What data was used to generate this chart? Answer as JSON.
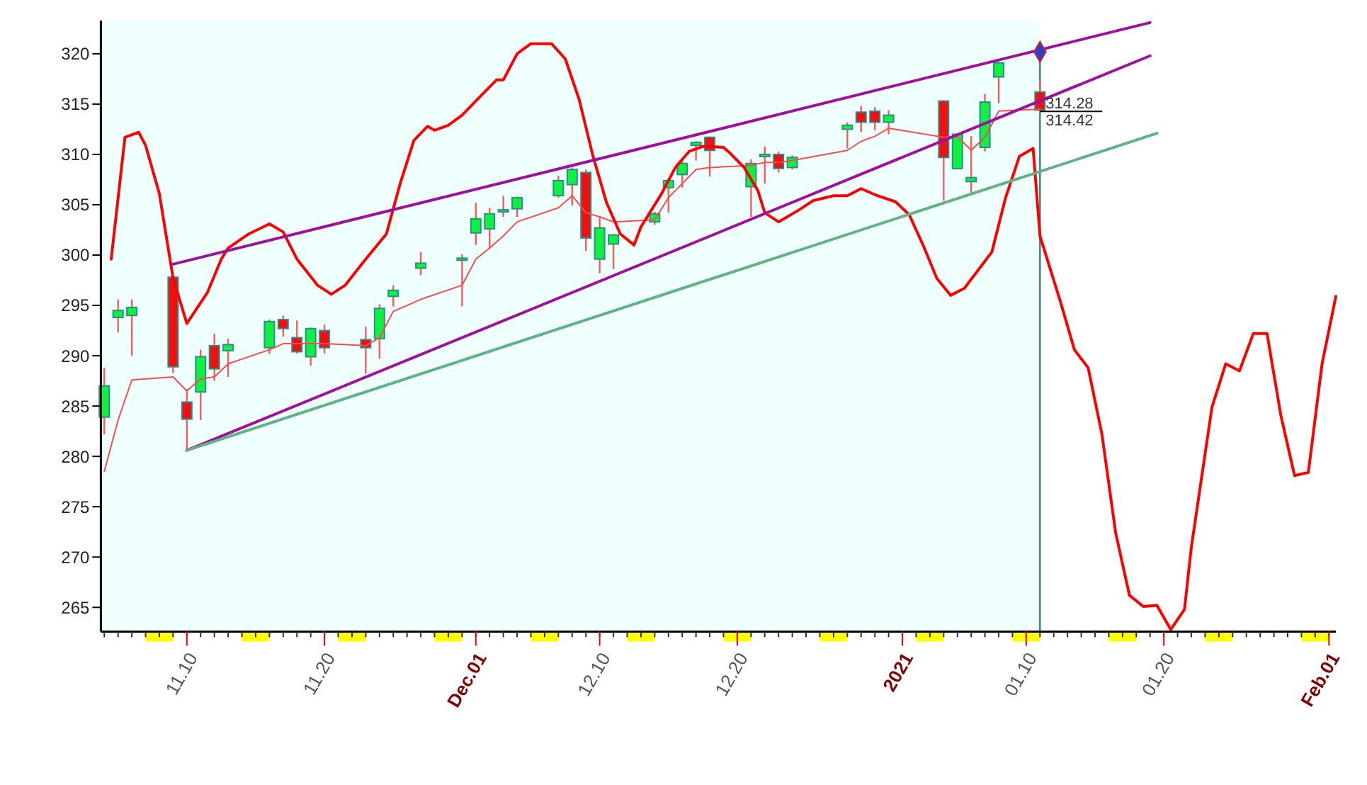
{
  "chart_data": {
    "type": "candlestick",
    "x": [
      "2020-11-04",
      "2020-11-05",
      "2020-11-06",
      "2020-11-09",
      "2020-11-10",
      "2020-11-11",
      "2020-11-12",
      "2020-11-13",
      "2020-11-16",
      "2020-11-17",
      "2020-11-18",
      "2020-11-19",
      "2020-11-20",
      "2020-11-23",
      "2020-11-24",
      "2020-11-25",
      "2020-11-27",
      "2020-11-30",
      "2020-12-01",
      "2020-12-02",
      "2020-12-03",
      "2020-12-04",
      "2020-12-07",
      "2020-12-08",
      "2020-12-09",
      "2020-12-10",
      "2020-12-11",
      "2020-12-14",
      "2020-12-15",
      "2020-12-16",
      "2020-12-17",
      "2020-12-18",
      "2020-12-21",
      "2020-12-22",
      "2020-12-23",
      "2020-12-24",
      "2020-12-28",
      "2020-12-29",
      "2020-12-30",
      "2020-12-31",
      "2021-01-04",
      "2021-01-05",
      "2021-01-06",
      "2021-01-07",
      "2021-01-08",
      "2021-01-11"
    ],
    "ohlc": [
      [
        283.9,
        288.8,
        282.2,
        287.0
      ],
      [
        293.8,
        295.6,
        292.3,
        294.5
      ],
      [
        294.0,
        295.6,
        290.0,
        294.8
      ],
      [
        297.8,
        297.9,
        288.3,
        288.9
      ],
      [
        285.4,
        286.7,
        280.6,
        283.7
      ],
      [
        286.4,
        290.6,
        283.6,
        289.9
      ],
      [
        291.0,
        292.2,
        287.5,
        288.7
      ],
      [
        290.5,
        291.7,
        287.9,
        291.1
      ],
      [
        290.8,
        293.6,
        290.2,
        293.4
      ],
      [
        293.6,
        294.0,
        291.9,
        292.7
      ],
      [
        291.8,
        293.5,
        290.2,
        290.4
      ],
      [
        289.9,
        292.8,
        289.0,
        292.7
      ],
      [
        292.5,
        293.1,
        290.2,
        290.8
      ],
      [
        291.6,
        292.9,
        288.2,
        290.8
      ],
      [
        291.7,
        295.1,
        289.7,
        294.7
      ],
      [
        295.9,
        297.0,
        294.9,
        296.5
      ],
      [
        298.7,
        300.3,
        298.0,
        299.2
      ],
      [
        299.6,
        300.1,
        294.9,
        299.7
      ],
      [
        302.2,
        305.2,
        301.0,
        303.6
      ],
      [
        302.6,
        304.7,
        300.7,
        304.1
      ],
      [
        304.4,
        305.9,
        303.8,
        304.5
      ],
      [
        304.6,
        305.8,
        303.8,
        305.7
      ],
      [
        305.9,
        307.9,
        305.7,
        307.4
      ],
      [
        307.0,
        308.7,
        304.9,
        308.5
      ],
      [
        308.2,
        308.5,
        300.4,
        301.7
      ],
      [
        299.6,
        303.8,
        298.2,
        302.7
      ],
      [
        301.1,
        302.1,
        298.6,
        302.0
      ],
      [
        303.3,
        304.3,
        303.0,
        304.1
      ],
      [
        306.7,
        307.6,
        304.2,
        307.4
      ],
      [
        308.0,
        309.4,
        306.7,
        309.1
      ],
      [
        310.9,
        311.3,
        309.4,
        311.2
      ],
      [
        311.7,
        311.8,
        307.8,
        310.4
      ],
      [
        306.8,
        309.5,
        303.8,
        309.1
      ],
      [
        309.9,
        310.8,
        307.1,
        310.0
      ],
      [
        310.0,
        310.3,
        308.2,
        308.6
      ],
      [
        308.7,
        309.9,
        308.5,
        309.7
      ],
      [
        312.5,
        313.2,
        310.6,
        312.9
      ],
      [
        314.2,
        314.8,
        312.2,
        313.2
      ],
      [
        314.3,
        314.7,
        312.4,
        313.2
      ],
      [
        313.2,
        314.4,
        312.0,
        313.9
      ],
      [
        315.3,
        315.4,
        305.4,
        309.7
      ],
      [
        308.6,
        312.1,
        308.5,
        312.0
      ],
      [
        307.3,
        311.8,
        306.2,
        307.7
      ],
      [
        310.7,
        316.0,
        310.3,
        315.2
      ],
      [
        317.7,
        319.2,
        315.1,
        319.1
      ],
      [
        316.2,
        317.3,
        314.1,
        314.4
      ]
    ],
    "series": [
      {
        "type": "line",
        "color": "#ff4a4a",
        "values": [
          278.5,
          283.6,
          287.6,
          287.9,
          286.5,
          287.7,
          287.9,
          289.2,
          290.6,
          291.2,
          291.2,
          291.2,
          291.2,
          291.0,
          291.8,
          294.4,
          295.6,
          297.0,
          299.6,
          300.7,
          301.9,
          303.3,
          304.7,
          305.9,
          304.2,
          303.8,
          303.3,
          303.5,
          305.7,
          307.1,
          308.5,
          308.7,
          308.9,
          309.2,
          309.2,
          309.4,
          310.4,
          311.3,
          311.8,
          312.6,
          311.7,
          311.8,
          310.4,
          311.7,
          314.3,
          314.5
        ]
      },
      {
        "type": "line",
        "color": "#ff0000",
        "x": [
          "2020-11-04T12:00",
          "2020-11-05T12:00",
          "2020-11-06T12:00",
          "2020-11-07",
          "2020-11-08",
          "2020-11-09",
          "2020-11-10",
          "2020-11-11T12:00",
          "2020-11-12T12:00",
          "2020-11-13",
          "2020-11-14T12:00",
          "2020-11-16",
          "2020-11-17",
          "2020-11-18",
          "2020-11-19T12:00",
          "2020-11-20T12:00",
          "2020-11-21T12:00",
          "2020-11-23",
          "2020-11-24T12:00",
          "2020-11-25T12:00",
          "2020-11-26T12:00",
          "2020-11-27T12:00",
          "2020-11-28",
          "2020-11-29",
          "2020-11-30",
          "2020-12-01T12:00",
          "2020-12-02T12:00",
          "2020-12-03",
          "2020-12-04",
          "2020-12-05",
          "2020-12-06T12:00",
          "2020-12-07T12:00",
          "2020-12-08T12:00",
          "2020-12-09T12:00",
          "2020-12-10T12:00",
          "2020-12-11T12:00",
          "2020-12-12T12:00",
          "2020-12-13",
          "2020-12-14T12:00",
          "2020-12-15T12:00",
          "2020-12-16T12:00",
          "2020-12-17T12:00",
          "2020-12-19",
          "2020-12-19T12:00",
          "2020-12-20T12:00",
          "2020-12-21T12:00",
          "2020-12-22",
          "2020-12-23",
          "2020-12-24T12:00",
          "2020-12-25T12:00",
          "2020-12-27",
          "2020-12-28",
          "2020-12-29",
          "2020-12-30",
          "2020-12-31T12:00",
          "2021-01-01T12:00",
          "2021-01-02T12:00",
          "2021-01-03T12:00",
          "2021-01-04T12:00",
          "2021-01-05T12:00",
          "2021-01-07T12:00",
          "2021-01-08T12:00",
          "2021-01-09T12:00",
          "2021-01-10T12:00",
          "2021-01-11",
          "2021-01-12T12:00",
          "2021-01-13T12:00",
          "2021-01-14T12:00",
          "2021-01-15T12:00",
          "2021-01-16T12:00",
          "2021-01-17T12:00",
          "2021-01-18T12:00",
          "2021-01-19T12:00",
          "2021-01-20T12:00",
          "2021-01-21T12:00",
          "2021-01-22",
          "2021-01-23T12:00",
          "2021-01-24T12:00",
          "2021-01-25T12:00",
          "2021-01-26T12:00",
          "2021-01-27T12:00",
          "2021-01-28T12:00",
          "2021-01-29T12:00",
          "2021-01-30T12:00",
          "2021-01-31T12:00",
          "2021-02-01T12:00"
        ],
        "values": [
          299.6,
          311.7,
          312.2,
          310.9,
          306.1,
          297.7,
          293.2,
          296.3,
          299.6,
          300.7,
          302.1,
          303.1,
          302.3,
          299.6,
          297.0,
          296.1,
          297.0,
          299.6,
          302.1,
          307.1,
          311.4,
          312.8,
          312.4,
          312.9,
          313.9,
          316.0,
          317.4,
          317.4,
          320.0,
          321.0,
          321.0,
          319.5,
          315.5,
          309.9,
          305.2,
          302.1,
          301.0,
          302.8,
          306.1,
          308.7,
          310.3,
          310.8,
          310.7,
          310.1,
          308.7,
          306.4,
          304.2,
          303.3,
          304.5,
          305.4,
          305.9,
          305.9,
          306.6,
          306.0,
          305.3,
          304.0,
          301.0,
          297.7,
          296.0,
          296.7,
          300.3,
          305.7,
          309.8,
          310.6,
          301.9,
          295.3,
          290.6,
          288.8,
          282.2,
          272.4,
          266.2,
          265.1,
          265.2,
          262.8,
          264.8,
          271.0,
          284.9,
          289.2,
          288.5,
          292.2,
          292.2,
          284.1,
          278.1,
          278.4,
          289.2,
          295.9
        ]
      },
      {
        "type": "line",
        "color": "#a0109f",
        "x": [
          "2020-11-09",
          "2021-01-19"
        ],
        "values": [
          299.1,
          323.1
        ]
      },
      {
        "type": "line",
        "color": "#a0109f",
        "x": [
          "2020-11-10",
          "2021-01-19"
        ],
        "values": [
          280.6,
          319.8
        ]
      },
      {
        "type": "line",
        "color": "#5fb386",
        "x": [
          "2020-11-10",
          "2021-01-19T12:00"
        ],
        "values": [
          280.6,
          312.1
        ]
      },
      {
        "type": "scatter",
        "marker": "diamond",
        "color": "#2a3fd0",
        "x": [
          "2021-01-11"
        ],
        "values": [
          320.2
        ]
      }
    ],
    "xlim": [
      "2020-11-03T18:00",
      "2021-02-01T12:00"
    ],
    "xticks": [
      {
        "value": "2020-11-10",
        "label": "11.10"
      },
      {
        "value": "2020-11-20",
        "label": "11.20"
      },
      {
        "value": "2020-12-01",
        "label": "Dec.01"
      },
      {
        "value": "2020-12-10",
        "label": "12.10"
      },
      {
        "value": "2020-12-20",
        "label": "12.20"
      },
      {
        "value": "2021-01-01",
        "label": "2021"
      },
      {
        "value": "2021-01-10",
        "label": "01.10"
      },
      {
        "value": "2021-01-20",
        "label": "01.20"
      },
      {
        "value": "2021-02-01",
        "label": "Feb.01"
      }
    ],
    "ylim": [
      262.6,
      323.3
    ],
    "yticks": [
      265,
      270,
      275,
      280,
      285,
      290,
      295,
      300,
      305,
      310,
      315,
      320
    ],
    "ref_lines": [
      {
        "axis": "x",
        "value": "2021-01-11",
        "color": "#2e7f7f"
      }
    ],
    "bands": [
      {
        "axis": "x",
        "from": "2020-11-03T18:00",
        "to": "2021-01-11",
        "color": "#effffd"
      }
    ],
    "annotations": [
      {
        "text": "314.28",
        "x": "2021-01-11",
        "y": 314.28
      },
      {
        "text": "314.42",
        "x": "2021-01-11",
        "y": 314.42
      }
    ],
    "grid": false
  }
}
